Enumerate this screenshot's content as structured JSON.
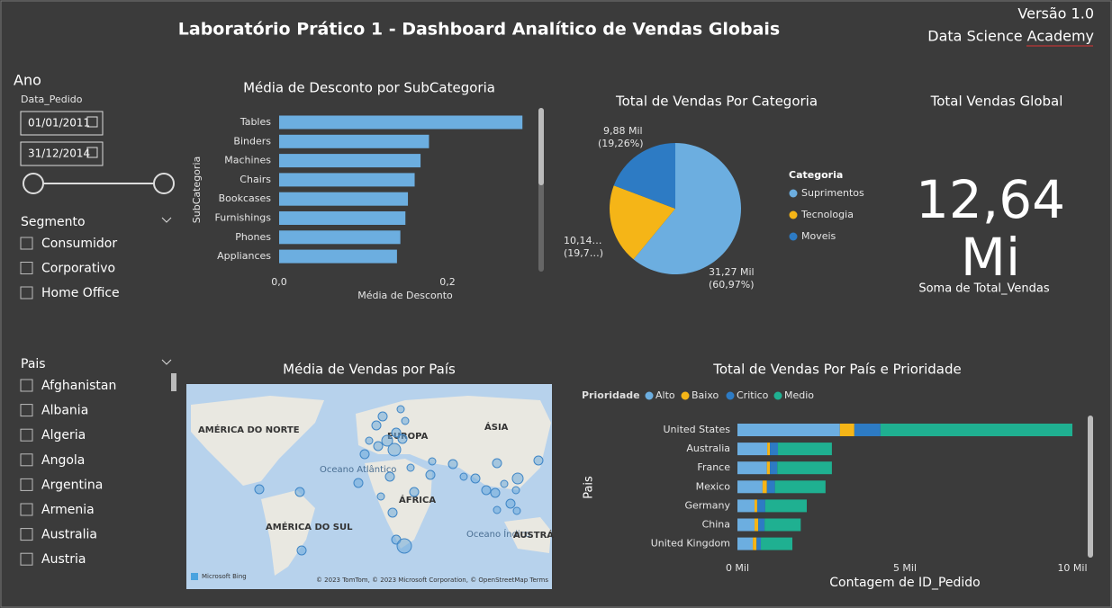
{
  "header": {
    "title": "Laboratório Prático 1 - Dashboard Analítico de Vendas Globais",
    "version": "Versão 1.0",
    "organization": "Data Science Academy"
  },
  "filters": {
    "year": {
      "title": "Ano",
      "field": "Data_Pedido",
      "start": "01/01/2011",
      "end": "31/12/2014"
    },
    "segment": {
      "title": "Segmento",
      "options": [
        "Consumidor",
        "Corporativo",
        "Home Office"
      ]
    },
    "country": {
      "title": "Pais",
      "options": [
        "Afghanistan",
        "Albania",
        "Algeria",
        "Angola",
        "Argentina",
        "Armenia",
        "Australia",
        "Austria"
      ]
    }
  },
  "card": {
    "title": "Total Vendas Global",
    "value": 12.64,
    "value_label": "12,64 Mi",
    "caption": "Soma de Total_Vendas"
  },
  "map": {
    "title": "Média de Vendas por País",
    "labels": [
      "AMÉRICA DO NORTE",
      "EUROPA",
      "ÁSIA",
      "Oceano Atlântico",
      "ÁFRICA",
      "AMÉRICA DO SUL",
      "Oceano Índico",
      "AUSTRÁ"
    ],
    "provider": "Microsoft Bing",
    "credits": "© 2023 TomTom, © 2023 Microsoft Corporation, © OpenStreetMap  Terms"
  },
  "chart_data": [
    {
      "type": "bar",
      "orientation": "horizontal",
      "title": "Média de Desconto por SubCategoria",
      "x_label": "Média de Desconto",
      "y_label": "SubCategoria",
      "categories": [
        "Tables",
        "Binders",
        "Machines",
        "Chairs",
        "Bookcases",
        "Furnishings",
        "Phones",
        "Appliances"
      ],
      "values": [
        0.289,
        0.178,
        0.168,
        0.161,
        0.153,
        0.15,
        0.144,
        0.14
      ],
      "color": "#6caee0",
      "xlim": [
        0,
        0.29
      ],
      "xticks": [
        {
          "value": 0,
          "label": "0,0"
        },
        {
          "value": 0.2,
          "label": "0,2"
        }
      ]
    },
    {
      "type": "pie",
      "title": "Total de Vendas Por Categoria",
      "legend_title": "Categoria",
      "categories": [
        "Suprimentos",
        "Tecnologia",
        "Moveis"
      ],
      "values": [
        31.27,
        10.14,
        9.88
      ],
      "value_labels": [
        "31,27 Mil",
        "10,14…",
        "9,88 Mil"
      ],
      "percent_labels": [
        "(60,97%)",
        "(19,7…)",
        "(19,26%)"
      ],
      "colors": [
        "#6caee0",
        "#f5b517",
        "#2d7bc4"
      ]
    },
    {
      "type": "stacked-bar",
      "title": "Total de Vendas Por País e Prioridade",
      "legend_title": "Prioridade",
      "x_label": "Contagem de ID_Pedido",
      "y_label": "Pais",
      "categories": [
        "United States",
        "Australia",
        "France",
        "Mexico",
        "Germany",
        "China",
        "United Kingdom"
      ],
      "series": [
        {
          "name": "Alto",
          "color": "#6caee0",
          "values": [
            3.06,
            0.89,
            0.88,
            0.75,
            0.51,
            0.51,
            0.46
          ]
        },
        {
          "name": "Baixo",
          "color": "#f5b517",
          "values": [
            0.43,
            0.08,
            0.09,
            0.13,
            0.08,
            0.11,
            0.11
          ]
        },
        {
          "name": "Critico",
          "color": "#2d7bc4",
          "values": [
            0.78,
            0.24,
            0.22,
            0.24,
            0.24,
            0.19,
            0.13
          ]
        },
        {
          "name": "Medio",
          "color": "#1fb091",
          "values": [
            5.73,
            1.61,
            1.63,
            1.51,
            1.24,
            1.08,
            0.94
          ]
        }
      ],
      "xlim": [
        0,
        10
      ],
      "xticks": [
        {
          "value": 0,
          "label": "0 Mil"
        },
        {
          "value": 5,
          "label": "5 Mil"
        },
        {
          "value": 10,
          "label": "10 Mil"
        }
      ]
    }
  ]
}
